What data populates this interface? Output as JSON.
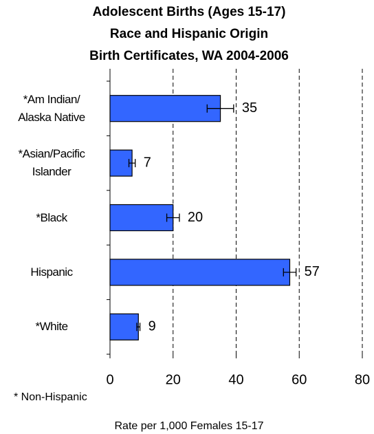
{
  "chart_data": {
    "type": "bar",
    "orientation": "horizontal",
    "title": [
      "Adolescent Births (Ages 15-17)",
      "Race and Hispanic Origin",
      "Birth Certificates,  WA 2004-2006"
    ],
    "categories": [
      "*Am Indian/\nAlaska Native",
      "*Asian/Pacific\nIslander",
      "*Black",
      "Hispanic",
      "*White"
    ],
    "series": [
      {
        "name": "Rate",
        "color": "#3366ff",
        "values": [
          35,
          7,
          20,
          57,
          9
        ],
        "errors": [
          4.2,
          1,
          2,
          2,
          0.5
        ]
      }
    ],
    "xlim": [
      0,
      80
    ],
    "xticks": [
      0,
      20,
      40,
      60,
      80
    ],
    "grid": true,
    "footnote": "* Non-Hispanic",
    "xlabel": "Rate per 1,000 Females 15-17"
  }
}
